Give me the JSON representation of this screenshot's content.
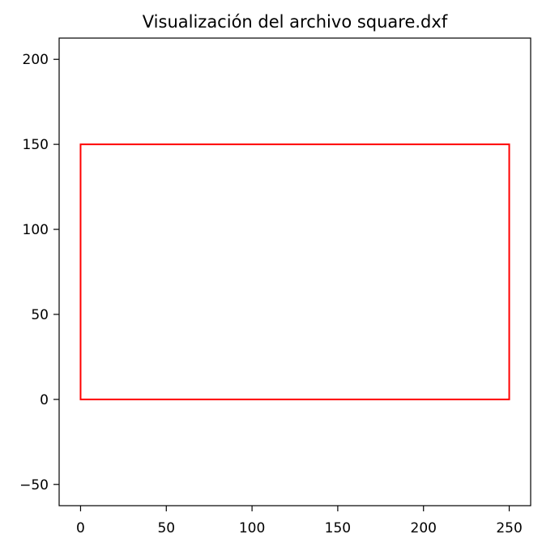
{
  "chart_data": {
    "type": "line",
    "title": "Visualización del archivo square.dxf",
    "xlabel": "",
    "ylabel": "",
    "xlim": [
      -12.5,
      262.5
    ],
    "ylim": [
      -62.5,
      212.5
    ],
    "xticks": [
      0,
      50,
      100,
      150,
      200,
      250
    ],
    "yticks": [
      -50,
      0,
      50,
      100,
      150,
      200
    ],
    "xtick_labels": [
      "0",
      "50",
      "100",
      "150",
      "200",
      "250"
    ],
    "ytick_labels": [
      "−50",
      "0",
      "50",
      "100",
      "150",
      "200"
    ],
    "grid": false,
    "legend": "none",
    "series": [
      {
        "color": "#ff0000",
        "points": [
          [
            0,
            0
          ],
          [
            250,
            0
          ],
          [
            250,
            150
          ],
          [
            0,
            150
          ],
          [
            0,
            0
          ]
        ]
      }
    ]
  }
}
